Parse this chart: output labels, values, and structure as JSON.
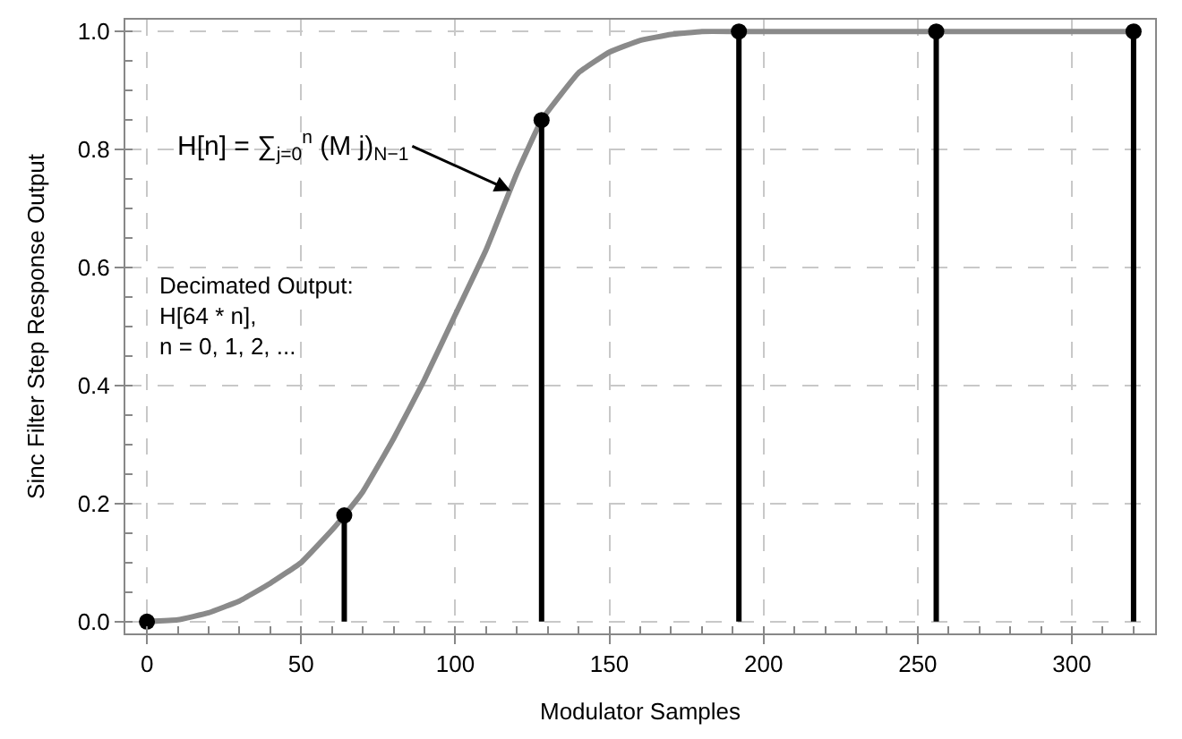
{
  "chart_data": {
    "type": "line",
    "xlabel": "Modulator Samples",
    "ylabel": "Sinc Filter Step Response Output",
    "xlim": [
      -7,
      327
    ],
    "ylim": [
      -0.02,
      1.02
    ],
    "xticks": [
      0,
      50,
      100,
      150,
      200,
      250,
      300
    ],
    "yticks": [
      {
        "value": 0,
        "label": "0.0"
      },
      {
        "value": 0.2,
        "label": "0.2"
      },
      {
        "value": 0.4,
        "label": "0.4"
      },
      {
        "value": 0.6,
        "label": "0.6"
      },
      {
        "value": 0.8,
        "label": "0.8"
      },
      {
        "value": 1,
        "label": "1.0"
      }
    ],
    "grid": true,
    "series": [
      {
        "color": "#8a8a8a",
        "x": [
          0,
          10,
          20,
          30,
          40,
          50,
          60,
          64,
          70,
          80,
          90,
          100,
          110,
          120,
          128,
          140,
          150,
          160,
          170,
          180,
          192,
          256,
          320
        ],
        "values": [
          0,
          0.003,
          0.015,
          0.035,
          0.065,
          0.1,
          0.155,
          0.18,
          0.22,
          0.31,
          0.41,
          0.52,
          0.63,
          0.76,
          0.85,
          0.93,
          0.965,
          0.985,
          0.995,
          1,
          1,
          1,
          1
        ]
      },
      {
        "type": "lollipop",
        "color": "#000000",
        "marker": "circle",
        "x": [
          0,
          64,
          128,
          192,
          256,
          320
        ],
        "values": [
          0,
          0.18,
          0.85,
          1,
          1,
          1
        ]
      }
    ],
    "annotations": [
      {
        "text": "H[n] = ∑$_{j=0}$$^{n}$ (M j)$_{N−1}$",
        "x": 118,
        "y": 0.73
      },
      "Decimated Output:\nH[64 * n],\nn = 0, 1, 2, ..."
    ]
  }
}
